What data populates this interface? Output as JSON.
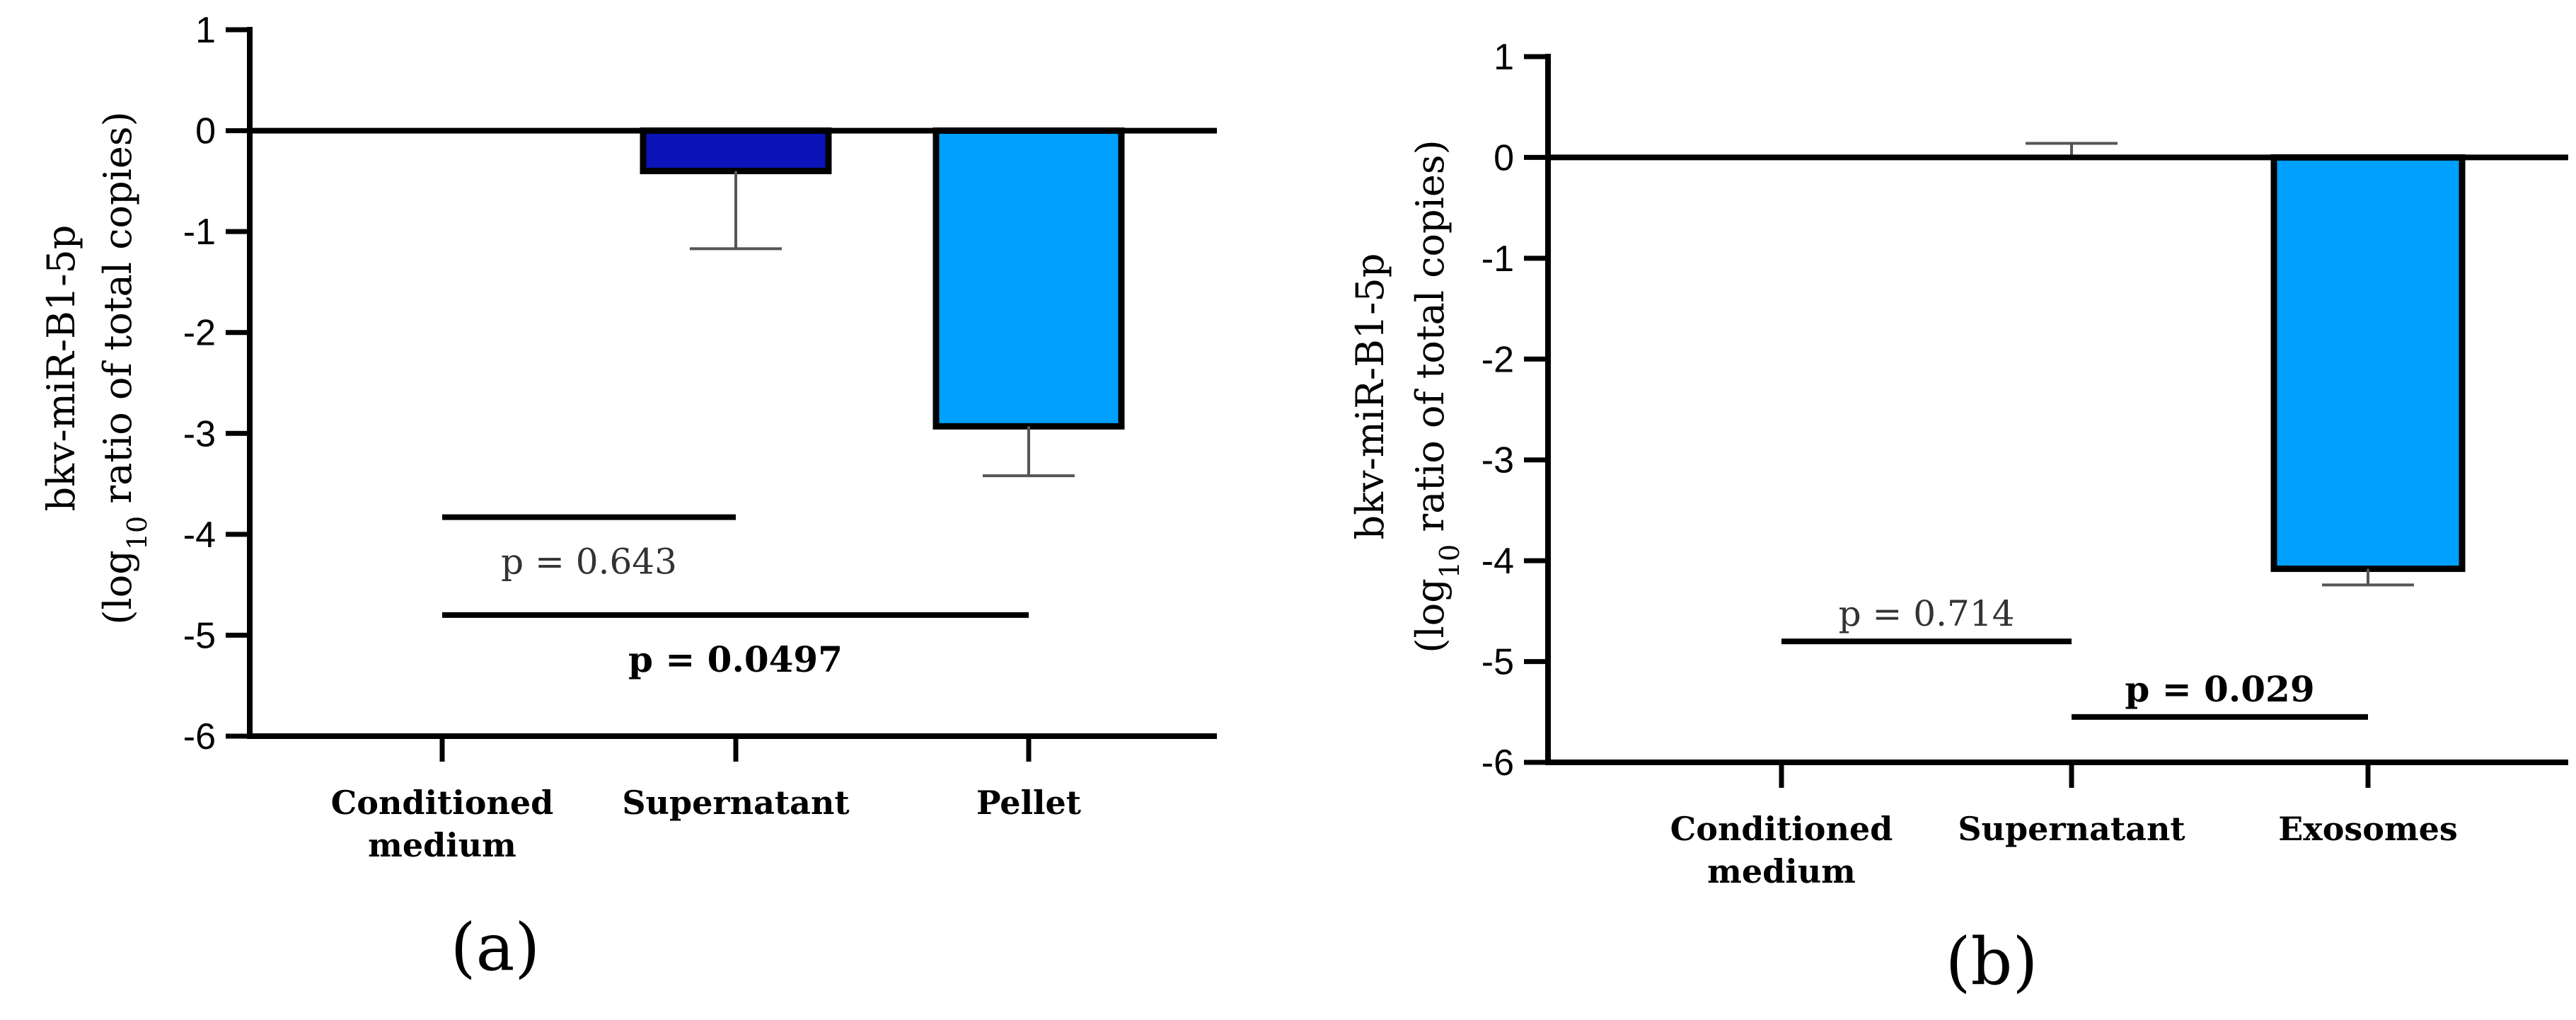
{
  "chart_data": [
    {
      "type": "bar",
      "panel_label": "(a)",
      "ylabel_line1": "bkv-miR-B1-5p",
      "ylabel_line2_pre": "(log",
      "ylabel_line2_sub": "10",
      "ylabel_line2_post": " ratio of total copies)",
      "categories": [
        "Conditioned medium",
        "Supernatant",
        "Pellet"
      ],
      "category_lines": [
        [
          "Conditioned",
          "medium"
        ],
        [
          "Supernatant"
        ],
        [
          "Pellet"
        ]
      ],
      "values": [
        0,
        -0.4,
        -2.93
      ],
      "error_low": [
        null,
        -1.17,
        -3.42
      ],
      "error_high": [
        null,
        null,
        null
      ],
      "bar_colors": [
        "#ffffff",
        "#0a14b8",
        "#00a0ff"
      ],
      "ylim": [
        -6,
        1
      ],
      "yticks": [
        1,
        0,
        -1,
        -2,
        -3,
        -4,
        -5,
        -6
      ],
      "ytick_labels": [
        "1",
        "0",
        "-1",
        "-2",
        "-3",
        "-4",
        "-5",
        "-6"
      ],
      "annotations": [
        {
          "text": "p = 0.643",
          "bold": false,
          "from": "Conditioned medium",
          "to": "Supernatant",
          "y_line": -3.83,
          "y_text": "below"
        },
        {
          "text": "p = 0.0497",
          "bold": true,
          "from": "Conditioned medium",
          "to": "Pellet",
          "y_line": -4.8,
          "y_text": "below"
        }
      ]
    },
    {
      "type": "bar",
      "panel_label": "(b)",
      "ylabel_line1": "bkv-miR-B1-5p",
      "ylabel_line2_pre": "(log",
      "ylabel_line2_sub": "10",
      "ylabel_line2_post": " ratio of total copies)",
      "categories": [
        "Conditioned medium",
        "Supernatant",
        "Exosomes"
      ],
      "category_lines": [
        [
          "Conditioned",
          "medium"
        ],
        [
          "Supernatant"
        ],
        [
          "Exosomes"
        ]
      ],
      "values": [
        0,
        0,
        -4.08
      ],
      "error_low": [
        null,
        null,
        -4.24
      ],
      "error_high": [
        null,
        0.14,
        null
      ],
      "bar_colors": [
        "#ffffff",
        "#0a14b8",
        "#00a0ff"
      ],
      "ylim": [
        -6,
        1
      ],
      "yticks": [
        1,
        0,
        -1,
        -2,
        -3,
        -4,
        -5,
        -6
      ],
      "ytick_labels": [
        "1",
        "0",
        "-1",
        "-2",
        "-3",
        "-4",
        "-5",
        "-6"
      ],
      "annotations": [
        {
          "text": "p = 0.714",
          "bold": false,
          "from": "Conditioned medium",
          "to": "Supernatant",
          "y_line": -4.8,
          "y_text": "above"
        },
        {
          "text": "p = 0.029",
          "bold": true,
          "from": "Supernatant",
          "to": "Exosomes",
          "y_line": -5.55,
          "y_text": "above"
        }
      ]
    }
  ]
}
